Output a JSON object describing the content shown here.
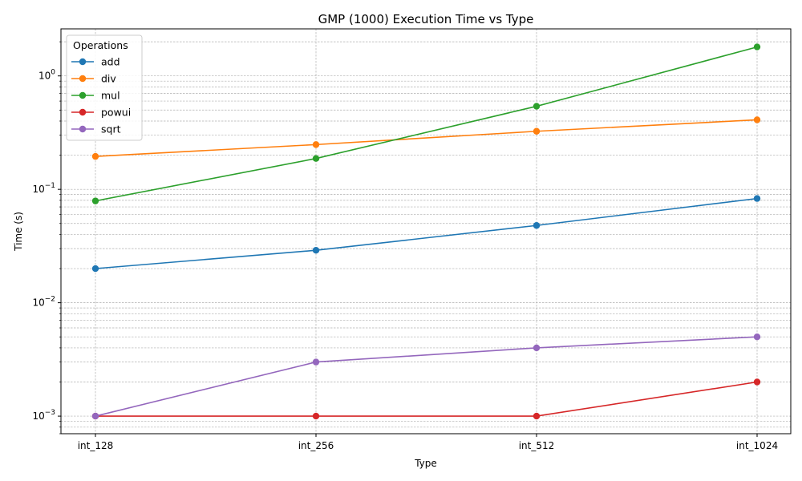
{
  "chart_data": {
    "type": "line",
    "title": "GMP (1000) Execution Time vs Type",
    "xlabel": "Type",
    "ylabel": "Time (s)",
    "yscale": "log",
    "ylim": [
      0.0007,
      2.6
    ],
    "grid": true,
    "categories": [
      "int_128",
      "int_256",
      "int_512",
      "int_1024"
    ],
    "y_ticks": [
      {
        "value": 0.001,
        "base": "10",
        "exp": "−3"
      },
      {
        "value": 0.01,
        "base": "10",
        "exp": "−2"
      },
      {
        "value": 0.1,
        "base": "10",
        "exp": "−1"
      },
      {
        "value": 1,
        "base": "10",
        "exp": "0"
      }
    ],
    "legend": {
      "title": "Operations",
      "position": "top-left"
    },
    "series": [
      {
        "name": "add",
        "color": "#1f77b4",
        "values": [
          0.02,
          0.029,
          0.048,
          0.083
        ]
      },
      {
        "name": "div",
        "color": "#ff7f0e",
        "values": [
          0.195,
          0.248,
          0.325,
          0.41
        ]
      },
      {
        "name": "mul",
        "color": "#2ca02c",
        "values": [
          0.079,
          0.187,
          0.54,
          1.8
        ]
      },
      {
        "name": "powui",
        "color": "#d62728",
        "values": [
          0.001,
          0.001,
          0.001,
          0.002
        ]
      },
      {
        "name": "sqrt",
        "color": "#9467bd",
        "values": [
          0.001,
          0.003,
          0.004,
          0.005
        ]
      }
    ]
  }
}
